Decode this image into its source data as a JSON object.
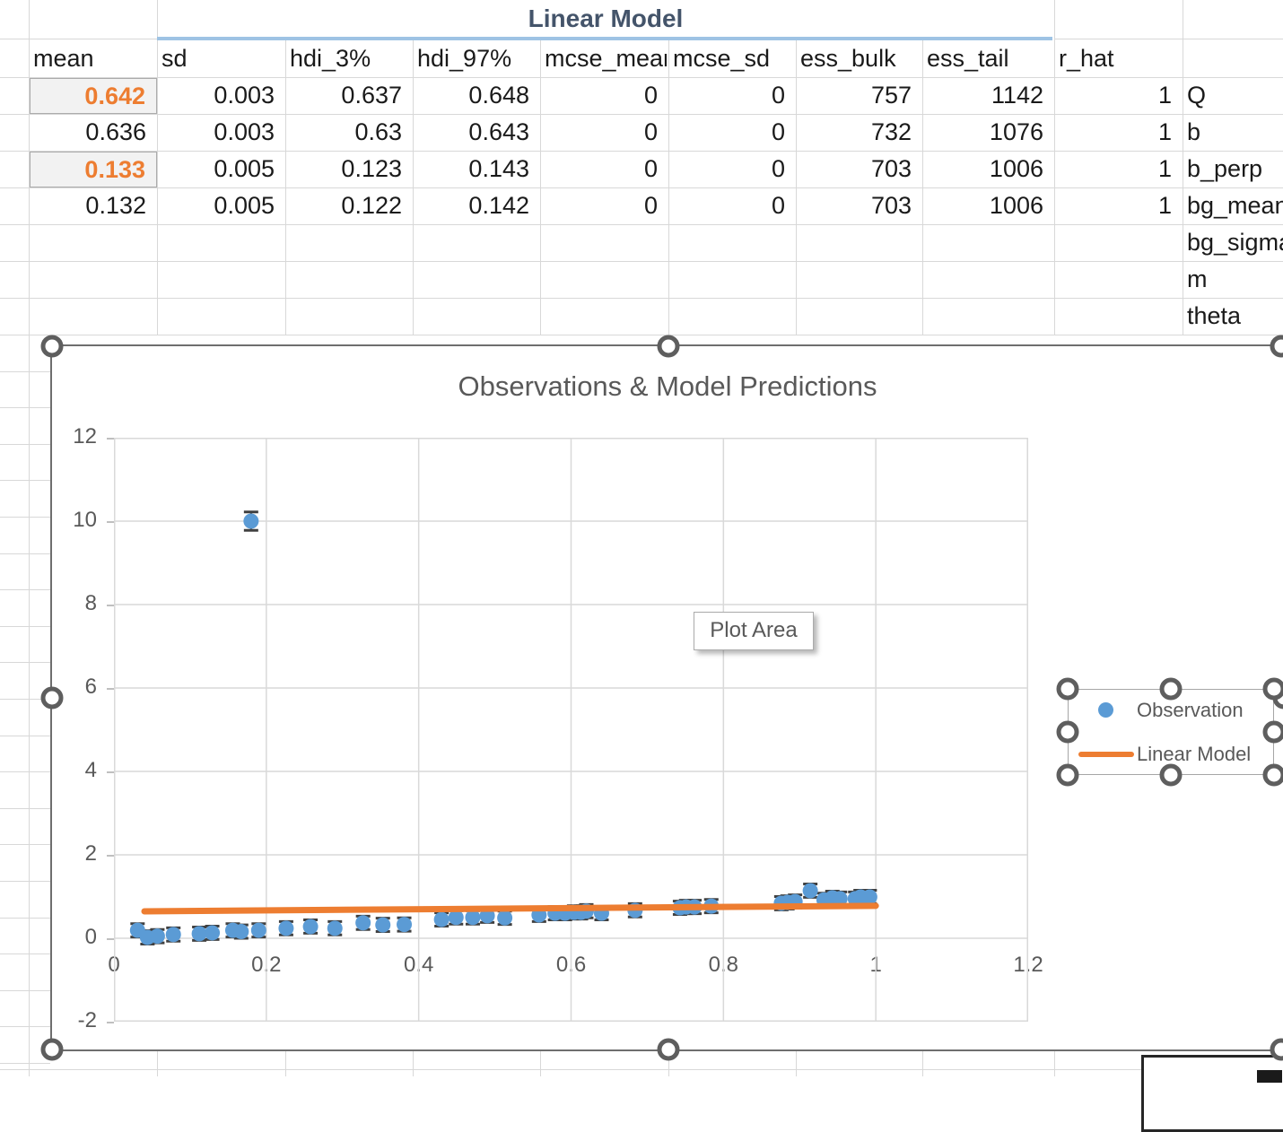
{
  "table": {
    "title": "Linear Model",
    "columns": [
      "mean",
      "sd",
      "hdi_3%",
      "hdi_97%",
      "mcse_mean",
      "mcse_sd",
      "ess_bulk",
      "ess_tail",
      "r_hat"
    ],
    "rows": [
      {
        "param": "Q",
        "values": [
          "0.642",
          "0.003",
          "0.637",
          "0.648",
          "0",
          "0",
          "757",
          "1142",
          "1"
        ],
        "highlight_mean": true
      },
      {
        "param": "b",
        "values": [
          "0.636",
          "0.003",
          "0.63",
          "0.643",
          "0",
          "0",
          "732",
          "1076",
          "1"
        ],
        "highlight_mean": false
      },
      {
        "param": "b_perp",
        "values": [
          "0.133",
          "0.005",
          "0.123",
          "0.143",
          "0",
          "0",
          "703",
          "1006",
          "1"
        ],
        "highlight_mean": true
      },
      {
        "param": "bg_mean",
        "values": [
          "0.132",
          "0.005",
          "0.122",
          "0.142",
          "0",
          "0",
          "703",
          "1006",
          "1"
        ],
        "highlight_mean": false
      },
      {
        "param": "bg_sigma",
        "values": [],
        "highlight_mean": false
      },
      {
        "param": "m",
        "values": [],
        "highlight_mean": false
      },
      {
        "param": "theta",
        "values": [],
        "highlight_mean": false
      }
    ]
  },
  "chart": {
    "title": "Observations & Model Predictions",
    "tooltip": "Plot Area",
    "selected": true,
    "legend_selected": true,
    "legend": [
      {
        "label": "Observation",
        "swatch": "point",
        "color": "#5b9bd5"
      },
      {
        "label": "Linear Model",
        "swatch": "line",
        "color": "#ed7d31"
      }
    ],
    "chart_data": {
      "type": "scatter",
      "title": "Observations & Model Predictions",
      "xlabel": "",
      "ylabel": "",
      "xlim": [
        0,
        1.2
      ],
      "ylim": [
        -2,
        12
      ],
      "x_ticks": [
        "0",
        "0.2",
        "0.4",
        "0.6",
        "0.8",
        "1",
        "1.2"
      ],
      "y_ticks": [
        "-2",
        "0",
        "2",
        "4",
        "6",
        "8",
        "10",
        "12"
      ],
      "grid": true,
      "legend_position": "right",
      "series": [
        {
          "name": "Observation",
          "type": "scatter",
          "color": "#5b9bd5",
          "error_color": "#404040",
          "default_yerr": 0.16,
          "points": [
            [
              0.031,
              0.19
            ],
            [
              0.044,
              0.02
            ],
            [
              0.057,
              0.05
            ],
            [
              0.078,
              0.09
            ],
            [
              0.112,
              0.11
            ],
            [
              0.129,
              0.13
            ],
            [
              0.156,
              0.19
            ],
            [
              0.167,
              0.16
            ],
            [
              0.19,
              0.19
            ],
            [
              0.226,
              0.24
            ],
            [
              0.258,
              0.28
            ],
            [
              0.29,
              0.24
            ],
            [
              0.327,
              0.37
            ],
            [
              0.353,
              0.32
            ],
            [
              0.381,
              0.33
            ],
            [
              0.43,
              0.45
            ],
            [
              0.449,
              0.5
            ],
            [
              0.471,
              0.5
            ],
            [
              0.49,
              0.54
            ],
            [
              0.513,
              0.49
            ],
            [
              0.558,
              0.56
            ],
            [
              0.579,
              0.6
            ],
            [
              0.592,
              0.6
            ],
            [
              0.604,
              0.62
            ],
            [
              0.613,
              0.62
            ],
            [
              0.62,
              0.65
            ],
            [
              0.64,
              0.6
            ],
            [
              0.684,
              0.67
            ],
            [
              0.743,
              0.73
            ],
            [
              0.751,
              0.75
            ],
            [
              0.762,
              0.75
            ],
            [
              0.784,
              0.77
            ],
            [
              0.876,
              0.84
            ],
            [
              0.884,
              0.86
            ],
            [
              0.894,
              0.88
            ],
            [
              0.914,
              1.14
            ],
            [
              0.932,
              0.92
            ],
            [
              0.943,
              0.97
            ],
            [
              0.953,
              0.95
            ],
            [
              0.973,
              0.95
            ],
            [
              0.98,
              0.99
            ],
            [
              0.992,
              0.99
            ],
            [
              0.18,
              10.0,
              0.22
            ]
          ]
        },
        {
          "name": "Linear Model",
          "type": "line",
          "color": "#ed7d31",
          "points": [
            [
              0.04,
              0.646
            ],
            [
              1.0,
              0.778
            ]
          ]
        }
      ]
    }
  },
  "colors": {
    "observation_blue": "#5b9bd5",
    "model_orange": "#ed7d31",
    "highlight_value_orange": "#ed7d31",
    "table_title_blue": "#44546a",
    "chart_text_gray": "#595959",
    "gridline_gray": "#d9d9d9"
  }
}
